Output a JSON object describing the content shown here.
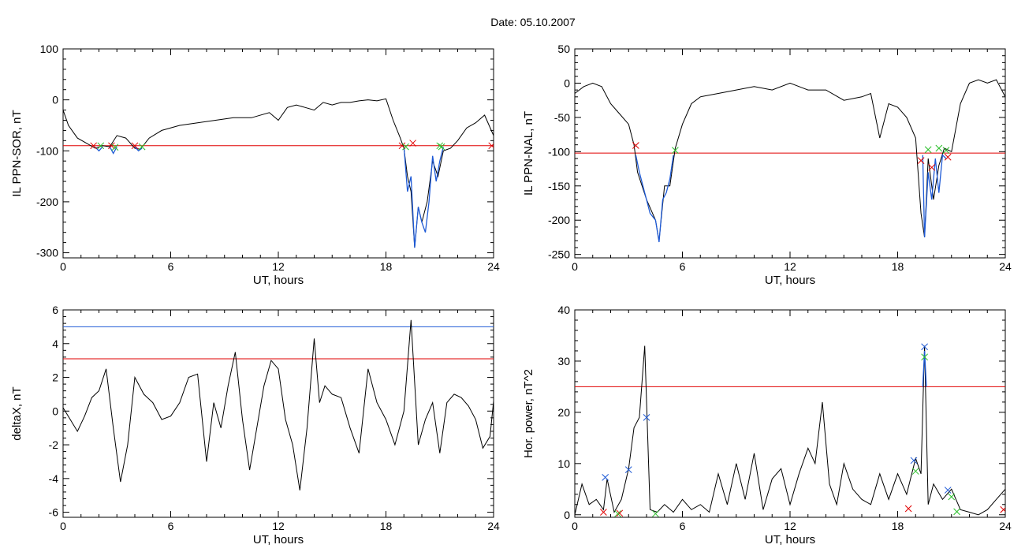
{
  "title": "Date:  05.10.2007",
  "chart_data": [
    {
      "type": "line",
      "ylabel": "IL PPN-SOR, nT",
      "xlabel": "UT, hours",
      "xlim": [
        0,
        24
      ],
      "ylim": [
        -310,
        100
      ],
      "xticks": [
        0,
        6,
        12,
        18,
        24
      ],
      "yticks": [
        -300,
        -200,
        -100,
        0,
        100
      ],
      "threshold_lines": [
        {
          "y": -90,
          "color": "#e00000"
        }
      ],
      "series": [
        {
          "color": "#000000",
          "x": [
            0,
            0.3,
            0.8,
            1.3,
            1.8,
            2.2,
            2.6,
            3.0,
            3.5,
            4.0,
            4.3,
            4.8,
            5.5,
            6.5,
            7.5,
            8.5,
            9.5,
            10.5,
            11.5,
            12.0,
            12.5,
            13.0,
            13.5,
            14.0,
            14.5,
            15.0,
            15.5,
            16.0,
            16.5,
            17.0,
            17.5,
            18.0,
            18.4,
            18.8,
            19.0,
            19.2,
            19.4,
            19.6,
            19.8,
            20.0,
            20.3,
            20.6,
            20.9,
            21.2,
            21.6,
            22.0,
            22.5,
            23.0,
            23.5,
            24.0
          ],
          "y": [
            -20,
            -50,
            -75,
            -85,
            -95,
            -90,
            -92,
            -70,
            -75,
            -95,
            -97,
            -75,
            -60,
            -50,
            -45,
            -40,
            -35,
            -35,
            -25,
            -40,
            -15,
            -10,
            -15,
            -20,
            -5,
            -10,
            -5,
            -5,
            -2,
            0,
            -2,
            2,
            -40,
            -75,
            -95,
            -150,
            -180,
            -290,
            -210,
            -240,
            -200,
            -120,
            -150,
            -100,
            -95,
            -80,
            -55,
            -45,
            -30,
            -70
          ]
        }
      ],
      "highlight": {
        "color": "#1e5ad6",
        "segments": [
          {
            "x": [
              1.8,
              2.0,
              2.2
            ],
            "y": [
              -93,
              -100,
              -92
            ]
          },
          {
            "x": [
              2.6,
              2.8,
              3.0
            ],
            "y": [
              -92,
              -105,
              -92
            ]
          },
          {
            "x": [
              4.0,
              4.2,
              4.4
            ],
            "y": [
              -92,
              -100,
              -95
            ]
          },
          {
            "x": [
              19.0,
              19.2,
              19.4,
              19.6,
              19.8,
              20.0,
              20.2,
              20.4,
              20.6,
              20.8,
              21.0,
              21.2
            ],
            "y": [
              -92,
              -180,
              -150,
              -290,
              -210,
              -240,
              -260,
              -200,
              -110,
              -160,
              -120,
              -92
            ]
          }
        ]
      },
      "markers": [
        {
          "x": 1.7,
          "y": -90,
          "color": "#e00000"
        },
        {
          "x": 2.1,
          "y": -90,
          "color": "#2bbf2b"
        },
        {
          "x": 2.7,
          "y": -90,
          "color": "#e00000"
        },
        {
          "x": 2.9,
          "y": -93,
          "color": "#2bbf2b"
        },
        {
          "x": 4.0,
          "y": -90,
          "color": "#e00000"
        },
        {
          "x": 4.4,
          "y": -92,
          "color": "#2bbf2b"
        },
        {
          "x": 18.9,
          "y": -90,
          "color": "#e00000"
        },
        {
          "x": 19.1,
          "y": -92,
          "color": "#2bbf2b"
        },
        {
          "x": 19.5,
          "y": -85,
          "color": "#e00000"
        },
        {
          "x": 21.0,
          "y": -90,
          "color": "#2bbf2b"
        },
        {
          "x": 21.1,
          "y": -92,
          "color": "#2bbf2b"
        },
        {
          "x": 23.9,
          "y": -90,
          "color": "#e00000"
        }
      ]
    },
    {
      "type": "line",
      "ylabel": "IL PPN-NAL, nT",
      "xlabel": "UT, hours",
      "xlim": [
        0,
        24
      ],
      "ylim": [
        -255,
        50
      ],
      "xticks": [
        0,
        6,
        12,
        18,
        24
      ],
      "yticks": [
        -250,
        -200,
        -150,
        -100,
        -50,
        0,
        50
      ],
      "threshold_lines": [
        {
          "y": -102,
          "color": "#e00000"
        }
      ],
      "series": [
        {
          "color": "#000000",
          "x": [
            0,
            0.5,
            1.0,
            1.5,
            2.0,
            2.5,
            3.0,
            3.3,
            3.5,
            4.0,
            4.5,
            4.7,
            5.0,
            5.3,
            5.6,
            6.0,
            6.5,
            7.0,
            8.0,
            9.0,
            10.0,
            11.0,
            12.0,
            13.0,
            14.0,
            15.0,
            16.0,
            16.5,
            17.0,
            17.5,
            18.0,
            18.5,
            19.0,
            19.3,
            19.5,
            19.7,
            20.0,
            20.3,
            20.6,
            21.0,
            21.5,
            22.0,
            22.5,
            23.0,
            23.5,
            24.0
          ],
          "y": [
            -15,
            -5,
            0,
            -5,
            -30,
            -45,
            -60,
            -90,
            -130,
            -170,
            -200,
            -230,
            -150,
            -150,
            -95,
            -60,
            -30,
            -20,
            -15,
            -10,
            -5,
            -10,
            0,
            -10,
            -10,
            -25,
            -20,
            -15,
            -80,
            -30,
            -35,
            -50,
            -80,
            -190,
            -225,
            -110,
            -170,
            -120,
            -95,
            -100,
            -30,
            0,
            5,
            0,
            5,
            -20
          ]
        }
      ],
      "highlight": {
        "color": "#1e5ad6",
        "segments": [
          {
            "x": [
              3.4,
              3.6,
              3.9,
              4.2,
              4.5,
              4.7,
              4.9,
              5.1,
              5.3,
              5.5
            ],
            "y": [
              -105,
              -130,
              -160,
              -190,
              -200,
              -232,
              -170,
              -160,
              -140,
              -105
            ]
          },
          {
            "x": [
              19.4,
              19.5,
              19.7,
              19.9,
              20.1,
              20.3,
              20.5,
              20.7
            ],
            "y": [
              -105,
              -225,
              -130,
              -170,
              -110,
              -160,
              -105,
              -110
            ]
          }
        ]
      },
      "markers": [
        {
          "x": 3.4,
          "y": -91,
          "color": "#e00000"
        },
        {
          "x": 5.6,
          "y": -98,
          "color": "#2bbf2b"
        },
        {
          "x": 19.3,
          "y": -113,
          "color": "#e00000"
        },
        {
          "x": 19.7,
          "y": -97,
          "color": "#2bbf2b"
        },
        {
          "x": 19.9,
          "y": -123,
          "color": "#e00000"
        },
        {
          "x": 20.3,
          "y": -95,
          "color": "#2bbf2b"
        },
        {
          "x": 20.7,
          "y": -98,
          "color": "#2bbf2b"
        },
        {
          "x": 20.8,
          "y": -108,
          "color": "#e00000"
        }
      ]
    },
    {
      "type": "line",
      "ylabel": "deltaX, nT",
      "xlabel": "UT, hours",
      "xlim": [
        0,
        24
      ],
      "ylim": [
        -6.3,
        6
      ],
      "xticks": [
        0,
        6,
        12,
        18,
        24
      ],
      "yticks": [
        -6,
        -4,
        -2,
        0,
        2,
        4,
        6
      ],
      "threshold_lines": [
        {
          "y": 5.0,
          "color": "#1e5ad6"
        },
        {
          "y": 3.1,
          "color": "#e00000"
        }
      ],
      "series": [
        {
          "color": "#000000",
          "x": [
            0,
            0.4,
            0.8,
            1.2,
            1.6,
            2.0,
            2.4,
            2.8,
            3.2,
            3.6,
            4.0,
            4.5,
            5.0,
            5.5,
            6.0,
            6.5,
            7.0,
            7.5,
            8.0,
            8.4,
            8.8,
            9.2,
            9.6,
            10.0,
            10.4,
            10.8,
            11.2,
            11.6,
            12.0,
            12.4,
            12.8,
            13.2,
            13.6,
            14.0,
            14.3,
            14.6,
            15.0,
            15.5,
            16.0,
            16.5,
            17.0,
            17.5,
            18.0,
            18.5,
            19.0,
            19.4,
            19.8,
            20.2,
            20.6,
            21.0,
            21.4,
            21.8,
            22.2,
            22.6,
            23.0,
            23.4,
            23.8,
            24.0
          ],
          "y": [
            0.2,
            -0.5,
            -1.2,
            -0.3,
            0.8,
            1.2,
            2.5,
            -1.0,
            -4.2,
            -2.0,
            2.0,
            1.0,
            0.5,
            -0.5,
            -0.3,
            0.5,
            2.0,
            2.2,
            -3.0,
            0.5,
            -1.0,
            1.5,
            3.5,
            -0.5,
            -3.5,
            -1.0,
            1.5,
            3.0,
            2.5,
            -0.5,
            -2.0,
            -4.7,
            -1.0,
            4.3,
            0.5,
            1.5,
            1.0,
            0.8,
            -1.0,
            -2.5,
            2.5,
            0.5,
            -0.5,
            -2.0,
            0.0,
            5.4,
            -2.0,
            -0.5,
            0.5,
            -2.5,
            0.5,
            1.0,
            0.8,
            0.3,
            -0.5,
            -2.2,
            -1.5,
            0.6
          ]
        }
      ],
      "highlight": null,
      "markers": []
    },
    {
      "type": "line",
      "ylabel": "Hor. power, nT^2",
      "xlabel": "UT, hours",
      "xlim": [
        0,
        24
      ],
      "ylim": [
        -0.5,
        40
      ],
      "xticks": [
        0,
        6,
        12,
        18,
        24
      ],
      "yticks": [
        0,
        10,
        20,
        30,
        40
      ],
      "threshold_lines": [
        {
          "y": 25,
          "color": "#e00000"
        }
      ],
      "series": [
        {
          "color": "#000000",
          "x": [
            0,
            0.4,
            0.8,
            1.2,
            1.6,
            1.8,
            2.2,
            2.6,
            3.0,
            3.3,
            3.6,
            3.9,
            4.2,
            4.6,
            5.0,
            5.5,
            6.0,
            6.5,
            7.0,
            7.5,
            8.0,
            8.5,
            9.0,
            9.5,
            10.0,
            10.5,
            11.0,
            11.5,
            12.0,
            12.5,
            13.0,
            13.4,
            13.8,
            14.2,
            14.6,
            15.0,
            15.5,
            16.0,
            16.5,
            17.0,
            17.5,
            18.0,
            18.5,
            19.0,
            19.3,
            19.5,
            19.7,
            20.0,
            20.5,
            21.0,
            21.5,
            22.0,
            22.5,
            23.0,
            23.5,
            24.0
          ],
          "y": [
            0,
            6,
            2,
            3,
            1,
            7,
            0.5,
            3,
            9,
            17,
            19,
            33,
            1,
            0.5,
            2,
            0.5,
            3,
            1,
            2,
            0.5,
            8,
            2,
            10,
            3,
            12,
            1,
            7,
            9,
            2,
            8,
            13,
            10,
            22,
            6,
            2,
            10,
            5,
            3,
            2,
            8,
            3,
            8,
            4,
            11,
            8,
            33,
            2,
            6,
            3,
            5,
            1,
            0.5,
            0,
            1,
            3,
            5
          ]
        }
      ],
      "highlight": {
        "color": "#1e5ad6",
        "segments": [
          {
            "x": [
              19.4,
              19.5,
              19.6
            ],
            "y": [
              25,
              32,
              25
            ]
          }
        ]
      },
      "markers": [
        {
          "x": 1.6,
          "y": 0.5,
          "color": "#e00000"
        },
        {
          "x": 1.7,
          "y": 7.3,
          "color": "#1e5ad6"
        },
        {
          "x": 2.5,
          "y": 0.3,
          "color": "#e00000"
        },
        {
          "x": 2.4,
          "y": 0.2,
          "color": "#2bbf2b"
        },
        {
          "x": 3.0,
          "y": 8.8,
          "color": "#1e5ad6"
        },
        {
          "x": 4.0,
          "y": 19,
          "color": "#1e5ad6"
        },
        {
          "x": 4.5,
          "y": 0.2,
          "color": "#2bbf2b"
        },
        {
          "x": 18.6,
          "y": 1.2,
          "color": "#e00000"
        },
        {
          "x": 18.9,
          "y": 10.6,
          "color": "#1e5ad6"
        },
        {
          "x": 19.0,
          "y": 8.5,
          "color": "#2bbf2b"
        },
        {
          "x": 19.5,
          "y": 32.8,
          "color": "#1e5ad6"
        },
        {
          "x": 19.5,
          "y": 30.8,
          "color": "#2bbf2b"
        },
        {
          "x": 20.8,
          "y": 4.8,
          "color": "#1e5ad6"
        },
        {
          "x": 21.0,
          "y": 3.5,
          "color": "#2bbf2b"
        },
        {
          "x": 21.3,
          "y": 0.6,
          "color": "#2bbf2b"
        },
        {
          "x": 23.9,
          "y": 1.0,
          "color": "#e00000"
        }
      ]
    }
  ]
}
